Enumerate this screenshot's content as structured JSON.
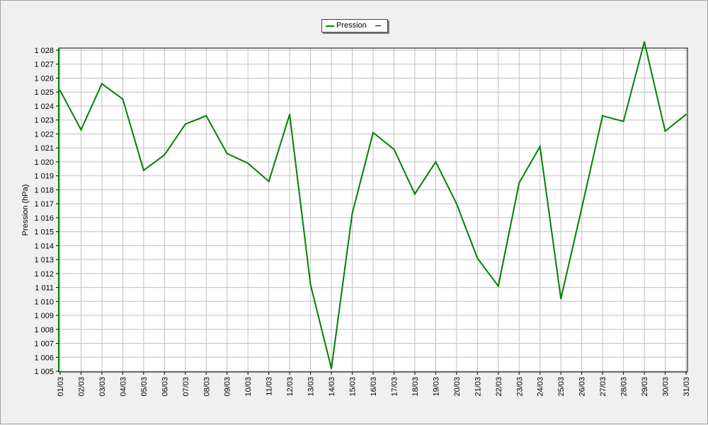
{
  "legend": {
    "series_name": "Pression"
  },
  "chart_data": {
    "type": "line",
    "ylabel": "Pression (hPa)",
    "xlabel": "",
    "ylim": [
      1005,
      1028
    ],
    "grid": true,
    "legend_position": "top-center",
    "x": [
      "01/03",
      "02/03",
      "03/03",
      "04/03",
      "05/03",
      "06/03",
      "07/03",
      "08/03",
      "09/03",
      "10/03",
      "11/03",
      "12/03",
      "13/03",
      "14/03",
      "15/03",
      "16/03",
      "17/03",
      "18/03",
      "19/03",
      "20/03",
      "21/03",
      "22/03",
      "23/03",
      "24/03",
      "25/03",
      "26/03",
      "27/03",
      "28/03",
      "29/03",
      "30/03",
      "31/03"
    ],
    "y_ticks": [
      "1 005",
      "1 006",
      "1 007",
      "1 008",
      "1 009",
      "1 010",
      "1 011",
      "1 012",
      "1 013",
      "1 014",
      "1 015",
      "1 016",
      "1 017",
      "1 018",
      "1 019",
      "1 020",
      "1 021",
      "1 022",
      "1 023",
      "1 024",
      "1 025",
      "1 026",
      "1 027",
      "1 028"
    ],
    "series": [
      {
        "name": "Pression",
        "color": "#008000",
        "values": [
          1025.1,
          1022.3,
          1025.6,
          1024.5,
          1019.4,
          1020.5,
          1022.7,
          1023.3,
          1020.6,
          1019.9,
          1018.6,
          1023.4,
          1011.2,
          1005.2,
          1016.3,
          1022.1,
          1020.9,
          1017.7,
          1020.0,
          1017.0,
          1013.1,
          1011.1,
          1018.5,
          1021.1,
          1010.2,
          1016.7,
          1023.3,
          1022.9,
          1028.6,
          1022.2,
          1023.4
        ]
      }
    ]
  }
}
